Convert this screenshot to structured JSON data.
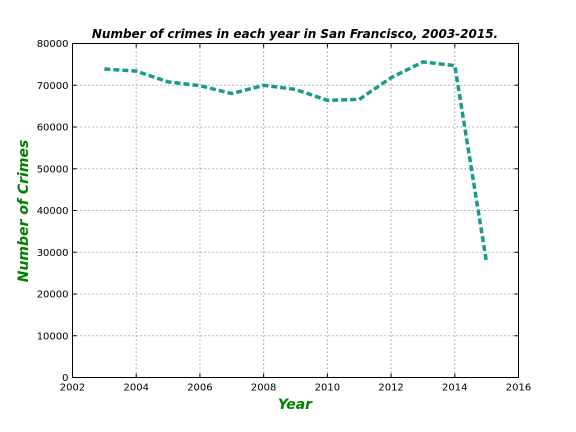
{
  "chart_data": {
    "type": "line",
    "title": "Number of crimes in each year in San Francisco, 2003-2015.",
    "xlabel": "Year",
    "ylabel": "Number of Crimes",
    "xlim": [
      2002,
      2016
    ],
    "ylim": [
      0,
      80000
    ],
    "xticks": [
      "2002",
      "2004",
      "2006",
      "2008",
      "2010",
      "2012",
      "2014",
      "2016"
    ],
    "yticks": [
      "0",
      "10000",
      "20000",
      "30000",
      "40000",
      "50000",
      "60000",
      "70000",
      "80000"
    ],
    "grid": true,
    "series": [
      {
        "x": [
          2003,
          2004,
          2005,
          2006,
          2007,
          2008,
          2009,
          2010,
          2011,
          2012,
          2013,
          2014,
          2015
        ],
        "values": [
          73900,
          73400,
          70800,
          69900,
          68000,
          70000,
          69000,
          66400,
          66600,
          71800,
          75600,
          74700,
          27500
        ]
      }
    ],
    "colors": {
      "line": "#1a9a8a",
      "axis_label": "#008000"
    }
  }
}
